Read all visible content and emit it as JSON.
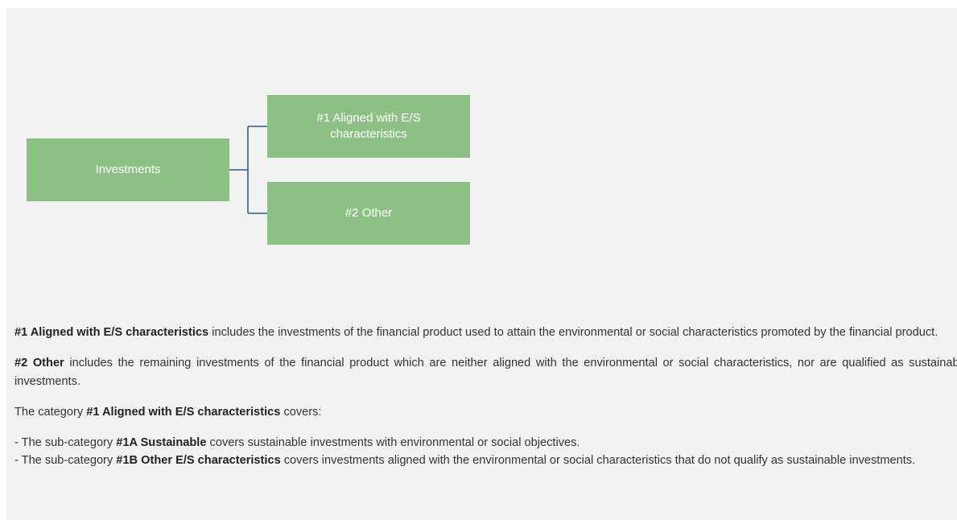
{
  "nodes": [
    {
      "label": "Investments"
    },
    {
      "label": "#1 Aligned with E/S characteristics"
    },
    {
      "label": "#2 Other"
    }
  ],
  "paragraphs": [
    [
      {
        "text": "#1 Aligned with E/S characteristics",
        "bold": true
      },
      {
        "text": " includes the investments of the financial product used to attain the environmental or social characteristics promoted by the financial product.",
        "bold": false
      }
    ],
    [
      {
        "text": "#2 Other",
        "bold": true
      },
      {
        "text": " includes the remaining investments of the financial product which are neither aligned with the environmental or social characteristics, nor are qualified as sustainable investments.",
        "bold": false
      }
    ],
    [
      {
        "text": "The category ",
        "bold": false
      },
      {
        "text": "#1 Aligned with E/S characteristics",
        "bold": true
      },
      {
        "text": " covers:",
        "bold": false
      }
    ]
  ],
  "list": [
    [
      {
        "text": "- The sub-category ",
        "bold": false
      },
      {
        "text": "#1A Sustainable",
        "bold": true
      },
      {
        "text": " covers sustainable investments with environmental or social objectives.",
        "bold": false
      }
    ],
    [
      {
        "text": "- The sub-category ",
        "bold": false
      },
      {
        "text": "#1B Other E/S characteristics",
        "bold": true
      },
      {
        "text": " covers investments aligned with the environmental or social characteristics that do not qualify as sustainable investments.",
        "bold": false
      }
    ]
  ]
}
